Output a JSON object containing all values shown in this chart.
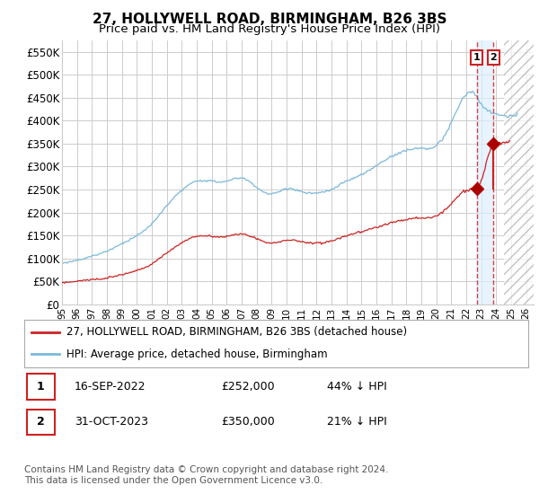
{
  "title": "27, HOLLYWELL ROAD, BIRMINGHAM, B26 3BS",
  "subtitle": "Price paid vs. HM Land Registry's House Price Index (HPI)",
  "title_fontsize": 11,
  "subtitle_fontsize": 9.5,
  "ylabel_ticks": [
    "£0",
    "£50K",
    "£100K",
    "£150K",
    "£200K",
    "£250K",
    "£300K",
    "£350K",
    "£400K",
    "£450K",
    "£500K",
    "£550K"
  ],
  "ytick_values": [
    0,
    50000,
    100000,
    150000,
    200000,
    250000,
    300000,
    350000,
    400000,
    450000,
    500000,
    550000
  ],
  "ylim": [
    0,
    575000
  ],
  "xlim_start": 1995.0,
  "xlim_end": 2026.5,
  "hpi_color": "#7ab8d9",
  "price_color": "#cc2222",
  "marker_color": "#aa0000",
  "vline_color": "#cc2222",
  "shade_color": "#ddeeff",
  "background_color": "#ffffff",
  "grid_color": "#cccccc",
  "sale1_x": 2022.71,
  "sale1_y": 252000,
  "sale2_x": 2023.83,
  "sale2_y": 350000,
  "legend1_label": "27, HOLLYWELL ROAD, BIRMINGHAM, B26 3BS (detached house)",
  "legend2_label": "HPI: Average price, detached house, Birmingham",
  "note1_label": "1",
  "note2_label": "2",
  "note1_date": "16-SEP-2022",
  "note1_price": "£252,000",
  "note1_pct": "44% ↓ HPI",
  "note2_date": "31-OCT-2023",
  "note2_price": "£350,000",
  "note2_pct": "21% ↓ HPI",
  "footer": "Contains HM Land Registry data © Crown copyright and database right 2024.\nThis data is licensed under the Open Government Licence v3.0.",
  "hatch_start": 2024.5,
  "hatch_end": 2026.5
}
